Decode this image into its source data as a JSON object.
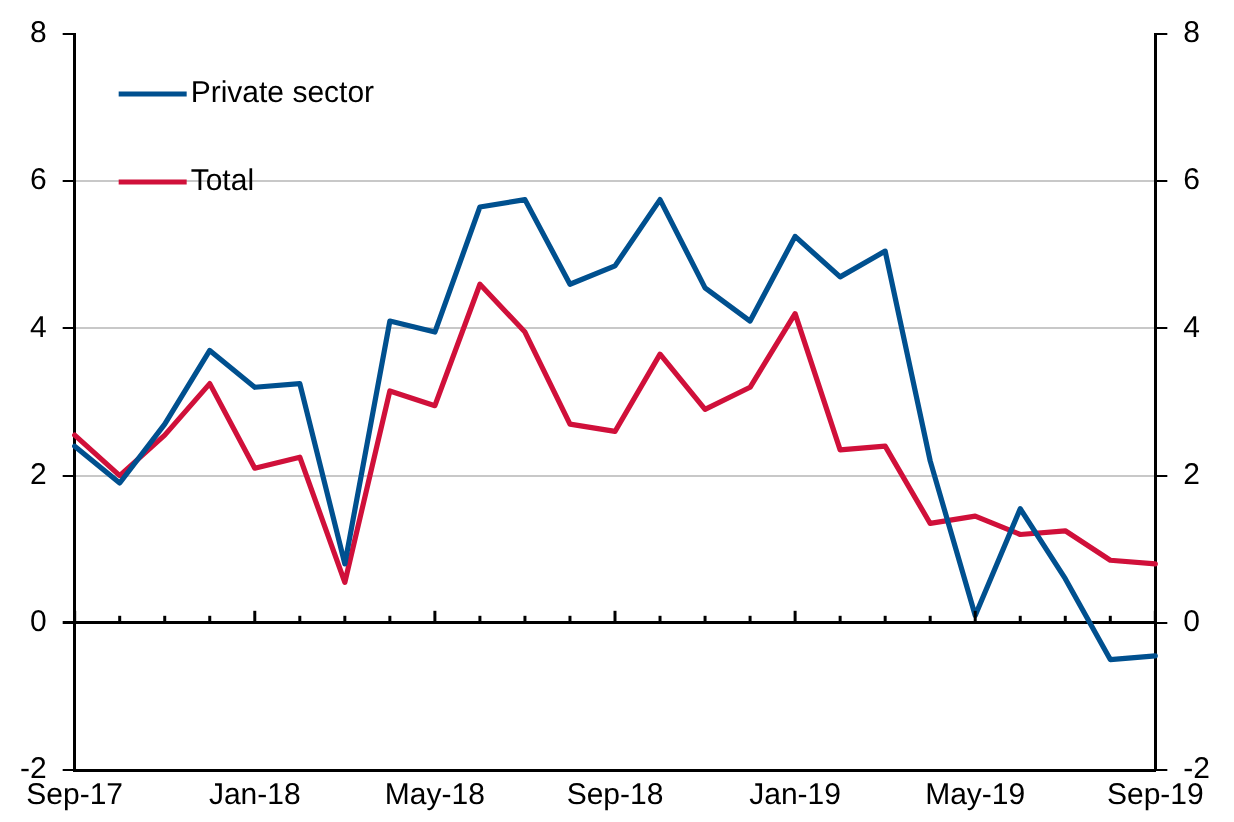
{
  "chart_data": {
    "type": "line",
    "categories": [
      "Sep-17",
      null,
      null,
      null,
      "Jan-18",
      null,
      null,
      null,
      "May-18",
      null,
      null,
      null,
      "Sep-18",
      null,
      null,
      null,
      "Jan-19",
      null,
      null,
      null,
      "May-19",
      null,
      null,
      null,
      "Sep-19"
    ],
    "series": [
      {
        "name": "Private sector",
        "color": "#00508f",
        "values": [
          2.4,
          1.9,
          2.7,
          3.7,
          3.2,
          3.25,
          0.8,
          4.1,
          3.95,
          5.65,
          5.75,
          4.6,
          4.85,
          5.75,
          4.55,
          4.1,
          5.25,
          4.7,
          5.05,
          2.2,
          0.1,
          1.55,
          0.6,
          -0.5,
          -0.45
        ]
      },
      {
        "name": "Total",
        "color": "#d0103a",
        "values": [
          2.55,
          2.0,
          2.55,
          3.25,
          2.1,
          2.25,
          0.55,
          3.15,
          2.95,
          4.6,
          3.95,
          2.7,
          2.6,
          3.65,
          2.9,
          3.2,
          4.2,
          2.35,
          2.4,
          1.35,
          1.45,
          1.2,
          1.25,
          0.85,
          0.8
        ]
      }
    ],
    "ylim": [
      -2,
      8
    ],
    "yticks": [
      -2,
      0,
      2,
      4,
      6,
      8
    ],
    "y2lim": [
      -2,
      8
    ],
    "y2ticks": [
      -2,
      0,
      2,
      4,
      6,
      8
    ],
    "grid": "y",
    "legend": "top left",
    "marker": "none",
    "line_style": "solid"
  }
}
